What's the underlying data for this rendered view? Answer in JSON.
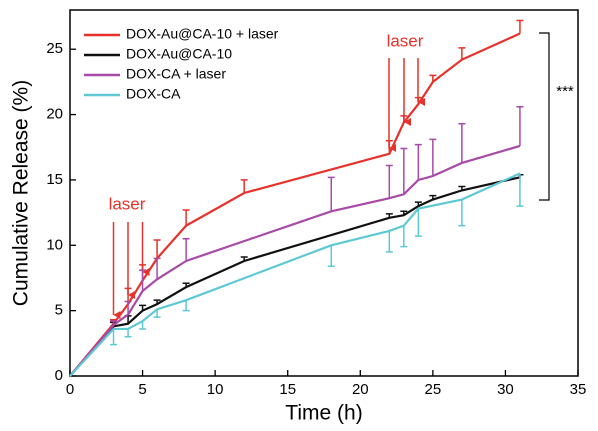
{
  "chart_data": {
    "type": "line",
    "xlabel": "Time (h)",
    "ylabel": "Cumulative Release (%)",
    "xlim": [
      0,
      35
    ],
    "xticks": [
      0,
      5,
      10,
      15,
      20,
      25,
      30,
      35
    ],
    "ylim": [
      0,
      28
    ],
    "yticks": [
      0,
      5,
      10,
      15,
      20,
      25
    ],
    "legend": "upper left",
    "series": [
      {
        "name": "DOX-Au@CA-10 + laser",
        "color": "#e8312a",
        "error_direction": "up",
        "x": [
          0,
          3,
          4,
          5,
          6,
          8,
          12,
          22,
          23,
          24,
          25,
          27,
          31
        ],
        "values": [
          0,
          4.0,
          5.5,
          7.3,
          9.0,
          11.5,
          14.0,
          17.0,
          19.4,
          20.8,
          22.5,
          24.2,
          26.2
        ],
        "errors": [
          0,
          0.3,
          1.2,
          1.2,
          1.4,
          1.2,
          1.0,
          1.0,
          0.5,
          0.5,
          0.5,
          0.9,
          1.0
        ]
      },
      {
        "name": "DOX-Au@CA-10",
        "color": "#111111",
        "error_direction": "up",
        "x": [
          0,
          3,
          4,
          5,
          6,
          8,
          12,
          22,
          23,
          24,
          25,
          27,
          31
        ],
        "values": [
          0,
          3.8,
          4.0,
          5.0,
          5.5,
          6.8,
          8.8,
          12.1,
          12.3,
          13.0,
          13.5,
          14.2,
          15.2
        ],
        "errors": [
          0,
          0.3,
          0.6,
          0.4,
          0.3,
          0.3,
          0.3,
          0.3,
          0.3,
          0.3,
          0.3,
          0.3,
          0.2
        ]
      },
      {
        "name": "DOX-CA + laser",
        "color": "#a84aa8",
        "error_direction": "up",
        "x": [
          0,
          3,
          4,
          5,
          6,
          8,
          18,
          22,
          23,
          24,
          25,
          27,
          31
        ],
        "values": [
          0,
          3.9,
          4.7,
          6.5,
          7.4,
          8.8,
          12.6,
          13.6,
          13.9,
          15.0,
          15.3,
          16.3,
          17.6
        ],
        "errors": [
          0,
          0.3,
          1.0,
          1.6,
          1.6,
          1.7,
          2.6,
          2.5,
          3.5,
          2.7,
          2.8,
          3.0,
          3.0
        ]
      },
      {
        "name": "DOX-CA",
        "color": "#5ec8d4",
        "error_direction": "down",
        "x": [
          0,
          3,
          4,
          5,
          6,
          8,
          18,
          22,
          23,
          24,
          27,
          31
        ],
        "values": [
          0,
          3.6,
          3.6,
          4.2,
          5.1,
          5.8,
          10.0,
          11.1,
          11.5,
          12.8,
          13.5,
          15.5
        ],
        "errors": [
          0,
          1.2,
          0.6,
          0.6,
          0.6,
          0.8,
          1.6,
          1.6,
          1.6,
          2.1,
          2.0,
          2.5
        ]
      }
    ],
    "annotations": [
      "laser",
      "laser",
      "***"
    ]
  }
}
